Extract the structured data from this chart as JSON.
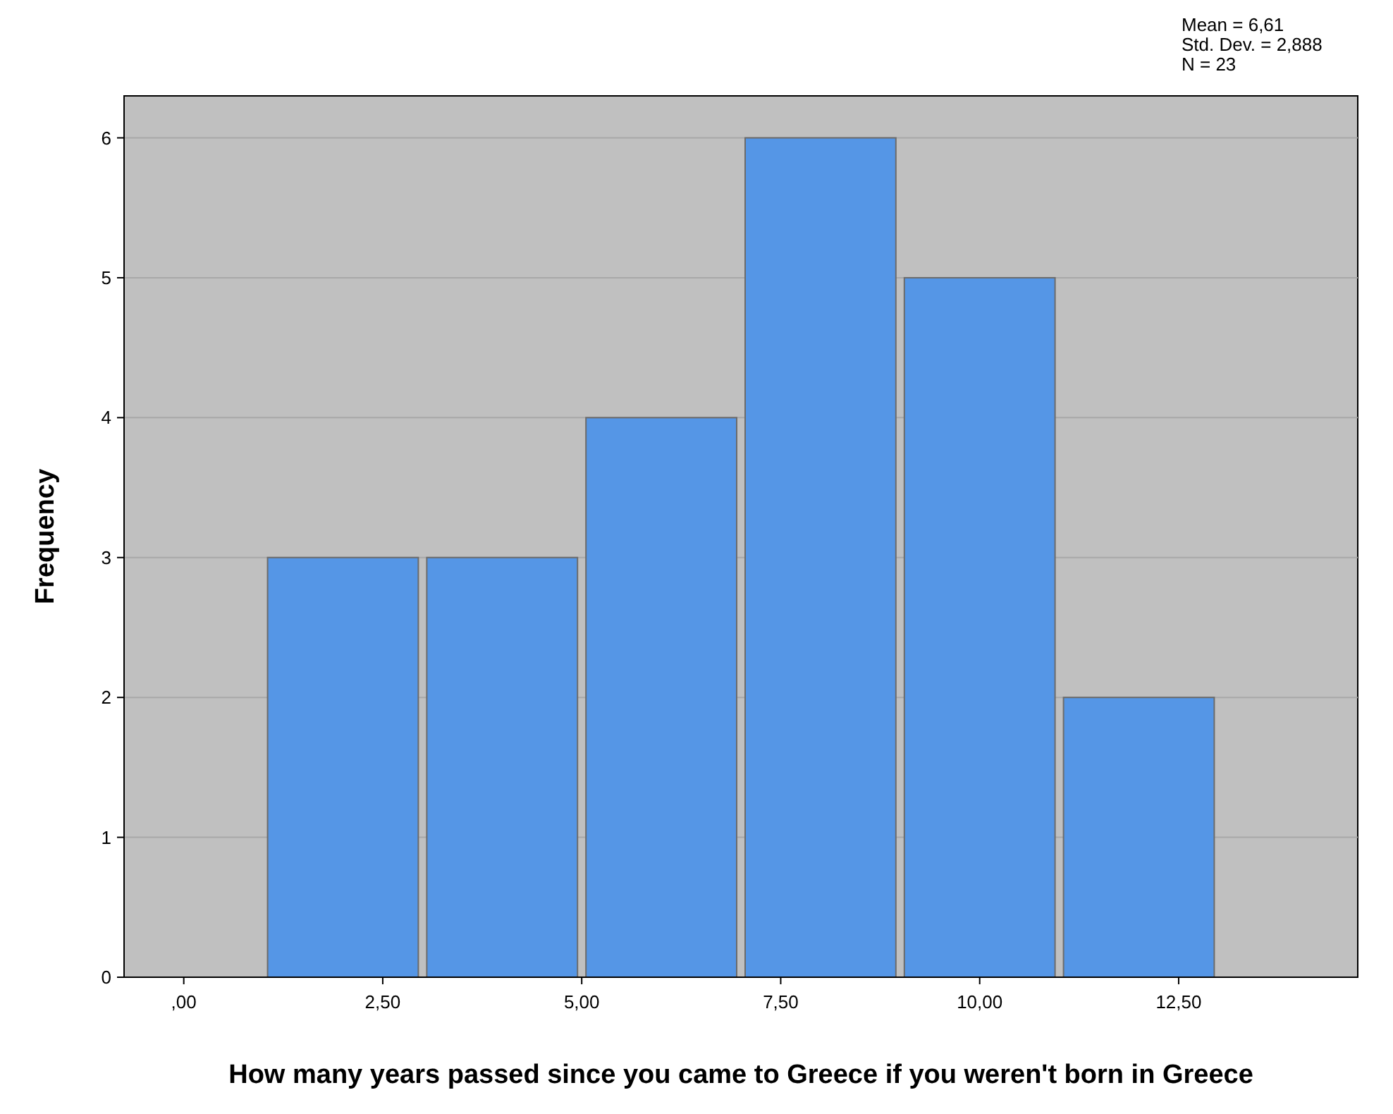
{
  "chart_data": {
    "type": "histogram",
    "xlabel": "How many years passed since you came to Greece if you weren't born in Greece",
    "ylabel": "Frequency",
    "bins": [
      1,
      3,
      5,
      7,
      9,
      11,
      13
    ],
    "values": [
      3,
      3,
      4,
      6,
      5,
      2
    ],
    "color": "#5596e6",
    "xlim": [
      -0.75,
      14.75
    ],
    "xticks": [
      {
        "value": 0,
        "label": ",00"
      },
      {
        "value": 2.5,
        "label": "2,50"
      },
      {
        "value": 5,
        "label": "5,00"
      },
      {
        "value": 7.5,
        "label": "7,50"
      },
      {
        "value": 10,
        "label": "10,00"
      },
      {
        "value": 12.5,
        "label": "12,50"
      }
    ],
    "ylim": [
      0,
      6.3
    ],
    "yticks": [
      0,
      1,
      2,
      3,
      4,
      5,
      6
    ],
    "grid": "y",
    "annotations": [
      "Mean = 6,61",
      "Std. Dev. = 2,888",
      "N = 23"
    ]
  }
}
